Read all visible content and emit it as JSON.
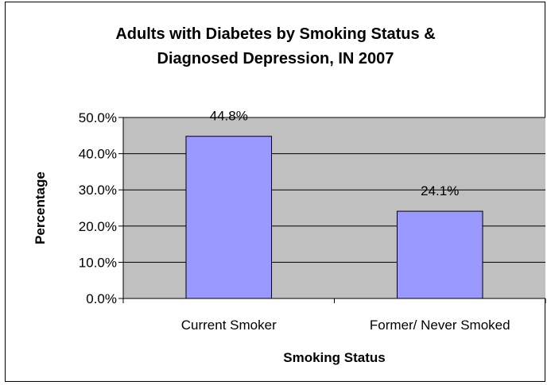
{
  "chart_data": {
    "type": "bar",
    "title_lines": [
      "Adults with Diabetes by Smoking Status &",
      "Diagnosed Depression, IN 2007"
    ],
    "xlabel": "Smoking Status",
    "ylabel": "Percentage",
    "categories": [
      "Current Smoker",
      "Former/ Never Smoked"
    ],
    "values": [
      44.8,
      24.1
    ],
    "value_labels": [
      "44.8%",
      "24.1%"
    ],
    "ylim": [
      0,
      50
    ],
    "yticks": [
      0,
      10,
      20,
      30,
      40,
      50
    ],
    "ytick_labels": [
      "0.0%",
      "10.0%",
      "20.0%",
      "30.0%",
      "40.0%",
      "50.0%"
    ],
    "grid": true,
    "colors": {
      "plot_background": "#c0c0c0",
      "bar_fill": "#9999ff",
      "bar_stroke": "#000000",
      "gridline": "#000000"
    }
  }
}
